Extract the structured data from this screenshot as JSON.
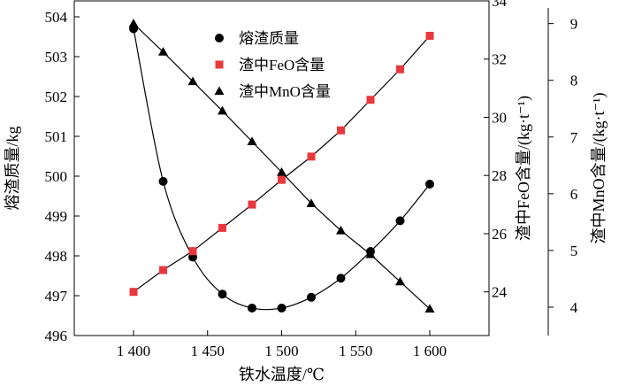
{
  "chart_data": {
    "type": "line",
    "xlabel": "铁水温度/℃",
    "ylabel_left": "熔渣质量/kg",
    "ylabel_right1": "渣中FeO含量/(kg·t⁻¹)",
    "ylabel_right2": "渣中MnO含量/(kg·t⁻¹)",
    "x": [
      1400,
      1420,
      1440,
      1460,
      1480,
      1500,
      1520,
      1540,
      1560,
      1580,
      1600
    ],
    "x_ticks": [
      1400,
      1450,
      1500,
      1550,
      1600
    ],
    "x_tick_labels": [
      "1 400",
      "1 450",
      "1 500",
      "1 550",
      "1 600"
    ],
    "xlim": [
      1360,
      1640
    ],
    "y_left_ticks": [
      496,
      497,
      498,
      499,
      500,
      501,
      502,
      503,
      504
    ],
    "y_left_tick_labels": [
      "496",
      "497",
      "498",
      "499",
      "500",
      "501",
      "502",
      "503",
      "504"
    ],
    "ylim_left": [
      496,
      504.4
    ],
    "y_right1_ticks": [
      24,
      26,
      28,
      30,
      32,
      34
    ],
    "y_right1_tick_labels": [
      "24",
      "26",
      "28",
      "30",
      "32",
      "34"
    ],
    "ylim_right1": [
      22.5,
      34.0
    ],
    "y_right2_ticks": [
      4,
      5,
      6,
      7,
      8,
      9
    ],
    "y_right2_tick_labels": [
      "4",
      "5",
      "6",
      "7",
      "8",
      "9"
    ],
    "ylim_right2": [
      3.5,
      9.4
    ],
    "legend_position": "top-center",
    "series": [
      {
        "name": "熔渣质量",
        "axis": "left",
        "marker": "circle",
        "color": "#000000",
        "values": [
          503.7,
          499.87,
          497.97,
          497.04,
          496.69,
          496.69,
          496.96,
          497.44,
          498.11,
          498.88,
          499.8
        ]
      },
      {
        "name": "渣中FeO含量",
        "axis": "right1",
        "marker": "square",
        "color": "#e8383d",
        "values": [
          24.0,
          24.75,
          25.4,
          26.2,
          27.0,
          27.85,
          28.65,
          29.55,
          30.6,
          31.65,
          32.8
        ]
      },
      {
        "name": "渣中MnO含量",
        "axis": "right2",
        "marker": "triangle",
        "color": "#000000",
        "values": [
          9.0,
          8.5,
          7.98,
          7.46,
          6.92,
          6.38,
          5.83,
          5.35,
          4.93,
          4.45,
          3.97
        ]
      }
    ]
  }
}
